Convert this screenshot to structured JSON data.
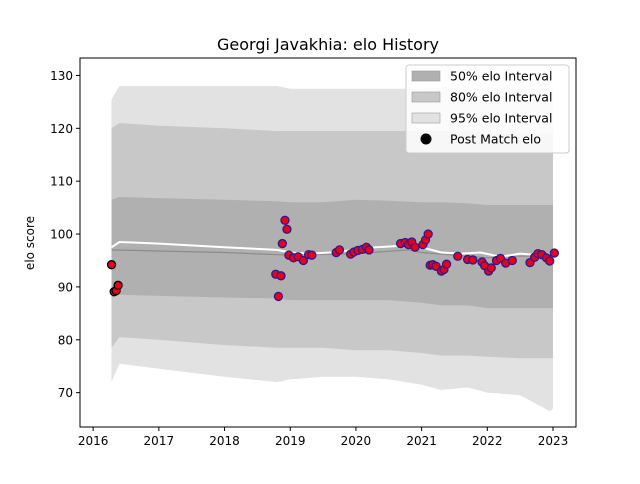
{
  "chart_data": {
    "type": "scatter",
    "title": "Georgi Javakhia: elo History",
    "xlabel": "",
    "ylabel": "elo score",
    "xlim": [
      2015.8,
      2023.35
    ],
    "ylim": [
      63.5,
      133.3
    ],
    "x_ticks": [
      2016,
      2017,
      2018,
      2019,
      2020,
      2021,
      2022,
      2023
    ],
    "y_ticks": [
      70,
      80,
      90,
      100,
      110,
      120,
      130
    ],
    "grid": false,
    "legend_position": "top-right",
    "legend": [
      {
        "label": "50% elo Interval",
        "kind": "band50"
      },
      {
        "label": "80% elo Interval",
        "kind": "band80"
      },
      {
        "label": "95% elo Interval",
        "kind": "band95"
      },
      {
        "label": "Post Match elo",
        "kind": "marker"
      }
    ],
    "colors": {
      "band50": "#b0b0b0",
      "band80": "#c8c8c8",
      "band95": "#e2e2e2",
      "mean_line": "#ffffff",
      "median_line": "#8c8c8c",
      "marker_face": "#e8001c",
      "marker_edge": "#2a1a8c",
      "early_marker_edge": "#000000"
    },
    "bands": {
      "x": [
        2016.28,
        2016.4,
        2017.0,
        2018.0,
        2018.8,
        2019.0,
        2019.5,
        2020.0,
        2020.5,
        2021.0,
        2021.3,
        2021.7,
        2022.0,
        2022.5,
        2022.95,
        2023.0
      ],
      "p95_upper": [
        125.5,
        128.0,
        128.0,
        128.0,
        128.0,
        127.5,
        127.5,
        127.5,
        127.5,
        127.5,
        127.8,
        127.5,
        127.2,
        127.5,
        127.5,
        127.5
      ],
      "p95_lower": [
        72.0,
        75.5,
        74.5,
        73.0,
        72.0,
        72.5,
        73.0,
        73.0,
        72.5,
        71.5,
        70.5,
        71.0,
        70.0,
        69.5,
        66.5,
        67.0
      ],
      "p80_upper": [
        120.0,
        121.0,
        120.5,
        120.0,
        119.5,
        119.5,
        119.5,
        119.5,
        119.5,
        119.5,
        119.5,
        119.5,
        119.0,
        119.0,
        119.0,
        119.0
      ],
      "p80_lower": [
        78.5,
        80.5,
        80.0,
        79.0,
        78.5,
        78.5,
        78.5,
        78.0,
        78.0,
        77.5,
        77.0,
        77.0,
        76.8,
        76.5,
        76.5,
        76.5
      ],
      "p50_upper": [
        106.5,
        107.0,
        106.8,
        106.5,
        106.2,
        106.0,
        106.0,
        106.5,
        106.3,
        106.0,
        106.0,
        105.8,
        105.5,
        105.5,
        105.5,
        105.5
      ],
      "p50_lower": [
        88.0,
        88.5,
        88.3,
        88.0,
        87.8,
        87.5,
        87.5,
        87.5,
        87.5,
        87.0,
        86.5,
        86.5,
        86.0,
        86.0,
        86.0,
        86.0
      ]
    },
    "mean_line": {
      "x": [
        2016.28,
        2016.4,
        2017.0,
        2018.0,
        2018.8,
        2019.0,
        2019.3,
        2019.6,
        2020.0,
        2020.3,
        2020.7,
        2021.0,
        2021.3,
        2021.6,
        2021.9,
        2022.2,
        2022.5,
        2022.8,
        2023.0
      ],
      "y": [
        97.5,
        98.5,
        98.2,
        97.5,
        97.0,
        96.5,
        96.3,
        96.5,
        97.0,
        97.5,
        97.8,
        97.5,
        96.5,
        96.3,
        96.5,
        95.7,
        96.3,
        96.0,
        96.3
      ]
    },
    "median_line": {
      "x": [
        2016.28,
        2017.0,
        2018.0,
        2019.0,
        2020.0,
        2020.8,
        2021.0,
        2021.5,
        2022.0,
        2022.5,
        2023.0
      ],
      "y": [
        97.0,
        96.8,
        96.5,
        96.0,
        96.3,
        97.0,
        96.5,
        96.0,
        95.5,
        95.8,
        95.8
      ]
    },
    "points_early": [
      {
        "x": 2016.28,
        "y": 94.2
      },
      {
        "x": 2016.32,
        "y": 89.1
      },
      {
        "x": 2016.35,
        "y": 89.3
      },
      {
        "x": 2016.38,
        "y": 90.3
      }
    ],
    "points": [
      {
        "x": 2018.78,
        "y": 92.4
      },
      {
        "x": 2018.82,
        "y": 88.2
      },
      {
        "x": 2018.86,
        "y": 92.1
      },
      {
        "x": 2018.88,
        "y": 98.2
      },
      {
        "x": 2018.92,
        "y": 102.6
      },
      {
        "x": 2018.95,
        "y": 100.9
      },
      {
        "x": 2018.98,
        "y": 96.0
      },
      {
        "x": 2019.05,
        "y": 95.5
      },
      {
        "x": 2019.12,
        "y": 95.7
      },
      {
        "x": 2019.2,
        "y": 95.0
      },
      {
        "x": 2019.28,
        "y": 96.1
      },
      {
        "x": 2019.33,
        "y": 96.0
      },
      {
        "x": 2019.7,
        "y": 96.5
      },
      {
        "x": 2019.75,
        "y": 97.0
      },
      {
        "x": 2019.92,
        "y": 96.2
      },
      {
        "x": 2019.97,
        "y": 96.6
      },
      {
        "x": 2020.03,
        "y": 96.9
      },
      {
        "x": 2020.1,
        "y": 97.1
      },
      {
        "x": 2020.16,
        "y": 97.5
      },
      {
        "x": 2020.2,
        "y": 97.0
      },
      {
        "x": 2020.68,
        "y": 98.2
      },
      {
        "x": 2020.75,
        "y": 98.4
      },
      {
        "x": 2020.8,
        "y": 98.0
      },
      {
        "x": 2020.85,
        "y": 98.5
      },
      {
        "x": 2020.9,
        "y": 97.5
      },
      {
        "x": 2021.02,
        "y": 98.0
      },
      {
        "x": 2021.06,
        "y": 98.9
      },
      {
        "x": 2021.1,
        "y": 100.0
      },
      {
        "x": 2021.13,
        "y": 94.1
      },
      {
        "x": 2021.17,
        "y": 94.2
      },
      {
        "x": 2021.22,
        "y": 93.9
      },
      {
        "x": 2021.3,
        "y": 93.0
      },
      {
        "x": 2021.34,
        "y": 93.3
      },
      {
        "x": 2021.38,
        "y": 94.3
      },
      {
        "x": 2021.55,
        "y": 95.8
      },
      {
        "x": 2021.7,
        "y": 95.2
      },
      {
        "x": 2021.78,
        "y": 95.1
      },
      {
        "x": 2021.92,
        "y": 94.7
      },
      {
        "x": 2021.96,
        "y": 94.0
      },
      {
        "x": 2022.02,
        "y": 93.0
      },
      {
        "x": 2022.06,
        "y": 93.6
      },
      {
        "x": 2022.14,
        "y": 95.0
      },
      {
        "x": 2022.2,
        "y": 95.4
      },
      {
        "x": 2022.28,
        "y": 94.5
      },
      {
        "x": 2022.38,
        "y": 95.0
      },
      {
        "x": 2022.65,
        "y": 94.6
      },
      {
        "x": 2022.72,
        "y": 95.6
      },
      {
        "x": 2022.77,
        "y": 96.3
      },
      {
        "x": 2022.83,
        "y": 96.1
      },
      {
        "x": 2022.9,
        "y": 95.5
      },
      {
        "x": 2022.95,
        "y": 94.9
      },
      {
        "x": 2023.02,
        "y": 96.4
      }
    ]
  }
}
